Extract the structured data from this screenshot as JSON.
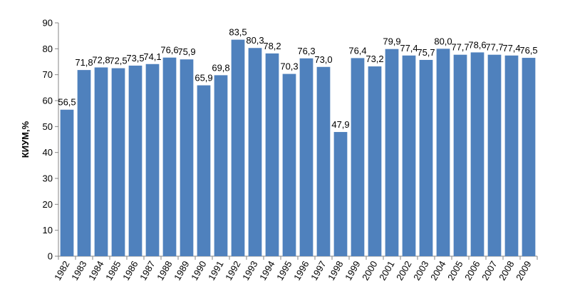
{
  "chart_data": {
    "type": "bar",
    "title": "",
    "xlabel": "",
    "ylabel": "КИУМ,%",
    "ylim": [
      0,
      90
    ],
    "y_ticks": [
      0,
      10,
      20,
      30,
      40,
      50,
      60,
      70,
      80,
      90
    ],
    "grid": false,
    "legend": "none",
    "bar_color": "#4F81BD",
    "categories": [
      "1982",
      "1983",
      "1984",
      "1985",
      "1986",
      "1987",
      "1988",
      "1989",
      "1990",
      "1991",
      "1992",
      "1993",
      "1994",
      "1995",
      "1996",
      "1997",
      "1998",
      "1999",
      "2000",
      "2001",
      "2002",
      "2003",
      "2004",
      "2005",
      "2006",
      "2007",
      "2008",
      "2009"
    ],
    "values": [
      56.5,
      71.8,
      72.8,
      72.5,
      73.5,
      74.1,
      76.6,
      75.9,
      65.9,
      69.8,
      83.5,
      80.3,
      78.2,
      70.3,
      76.3,
      73.0,
      47.9,
      76.4,
      73.2,
      79.9,
      77.4,
      75.7,
      80.0,
      77.7,
      78.6,
      77.7,
      77.4,
      76.5
    ],
    "data_labels": [
      "56,5",
      "71,8",
      "72,8",
      "72,5",
      "73,5",
      "74,1",
      "76,6",
      "75,9",
      "65,9",
      "69,8",
      "83,5",
      "80,3",
      "78,2",
      "70,3",
      "76,3",
      "73,0",
      "47,9",
      "76,4",
      "73,2",
      "79,9",
      "77,4",
      "75,7",
      "80,0",
      "77,7",
      "78,6",
      "77,7",
      "77,4",
      "76,5"
    ]
  }
}
